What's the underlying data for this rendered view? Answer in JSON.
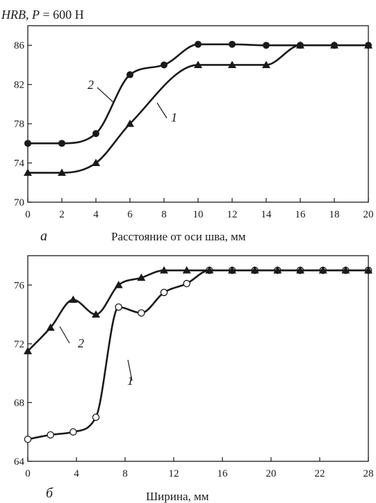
{
  "chart_data": [
    {
      "type": "line",
      "panel_label": "а",
      "ylabel_parts": {
        "italic": "HRB",
        "sep": ", ",
        "var": "P",
        "rest": " = 600 Н"
      },
      "xlabel": "Расстояние от оси шва, мм",
      "xlim": [
        0,
        20
      ],
      "ylim": [
        70,
        88
      ],
      "x_ticks": [
        "0",
        "2",
        "4",
        "6",
        "8",
        "10",
        "12",
        "14",
        "16",
        "18",
        "20"
      ],
      "y_ticks": [
        "70",
        "74",
        "78",
        "82",
        "86"
      ],
      "grid": false,
      "series": [
        {
          "name": "1",
          "marker": "triangle",
          "x": [
            0,
            2,
            4,
            6,
            10,
            12,
            14,
            16,
            18,
            20
          ],
          "y": [
            73,
            73,
            74,
            78,
            84,
            84,
            84,
            86,
            86,
            86
          ]
        },
        {
          "name": "2",
          "marker": "circle-filled",
          "x": [
            0,
            2,
            4,
            6,
            8,
            10,
            12,
            14,
            16,
            18,
            20
          ],
          "y": [
            76,
            76,
            77,
            83,
            84,
            86.1,
            86.1,
            86,
            86,
            86,
            86
          ]
        }
      ]
    },
    {
      "type": "line",
      "panel_label": "б",
      "xlabel": "Ширина, мм",
      "xlim": [
        0,
        30
      ],
      "ylim": [
        64,
        78
      ],
      "x_ticks": [
        "0",
        "4",
        "8",
        "12",
        "16",
        "20",
        "22",
        "28"
      ],
      "y_ticks": [
        "64",
        "68",
        "72",
        "76"
      ],
      "grid": false,
      "series": [
        {
          "name": "1",
          "marker": "circle-open",
          "x": [
            0,
            2,
            4,
            6,
            8,
            10,
            12,
            14,
            16,
            18,
            20,
            22,
            24,
            26,
            28,
            30
          ],
          "y": [
            65.5,
            65.8,
            66,
            67,
            74.5,
            74.1,
            75.5,
            76.1,
            77,
            77,
            77,
            77,
            77,
            77,
            77,
            77
          ]
        },
        {
          "name": "2",
          "marker": "triangle",
          "x": [
            0,
            2,
            4,
            6,
            8,
            10,
            12,
            14,
            16,
            18,
            20,
            22,
            24,
            26,
            28,
            30
          ],
          "y": [
            71.5,
            73.1,
            75,
            74,
            76,
            76.5,
            77,
            77,
            77,
            77,
            77,
            77,
            77,
            77,
            77,
            77
          ]
        }
      ]
    }
  ]
}
